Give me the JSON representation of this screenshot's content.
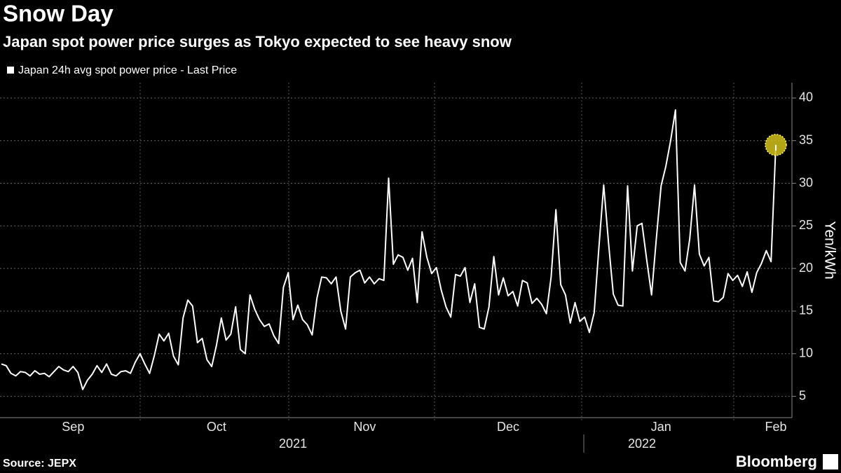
{
  "chart_data": {
    "type": "line",
    "title": "Snow Day",
    "subtitle": "Japan spot power price surges as Tokyo expected to see heavy snow",
    "y_label": "Yen/kWh",
    "source": "Source: JEPX",
    "brand": "Bloomberg",
    "series": [
      {
        "name": "Japan 24h avg spot power price - Last Price",
        "color": "#ffffff",
        "values": [
          8.8,
          8.6,
          7.7,
          7.4,
          7.9,
          7.8,
          7.4,
          8.0,
          7.6,
          7.7,
          7.3,
          7.9,
          8.5,
          8.1,
          7.9,
          8.5,
          7.8,
          5.8,
          6.9,
          7.6,
          8.6,
          7.8,
          8.8,
          7.6,
          7.4,
          7.9,
          8.0,
          7.7,
          9.0,
          10.0,
          8.8,
          7.7,
          9.8,
          12.3,
          11.5,
          12.4,
          9.7,
          8.7,
          14.2,
          16.3,
          15.6,
          11.3,
          11.8,
          9.3,
          8.5,
          11.0,
          14.2,
          11.6,
          12.3,
          15.5,
          10.5,
          10.0,
          16.9,
          15.2,
          14.0,
          13.2,
          13.5,
          12.1,
          11.2,
          17.8,
          19.5,
          14.0,
          15.7,
          14.0,
          13.4,
          12.2,
          16.5,
          19.0,
          18.9,
          18.2,
          19.0,
          15.0,
          12.9,
          19.0,
          19.5,
          19.8,
          18.3,
          19.0,
          18.2,
          18.8,
          18.6,
          30.6,
          20.5,
          21.6,
          21.3,
          19.8,
          21.2,
          16.0,
          24.3,
          21.3,
          19.4,
          20.1,
          17.5,
          15.5,
          14.3,
          19.3,
          19.1,
          20.1,
          16.0,
          18.2,
          13.1,
          12.9,
          15.5,
          21.4,
          16.9,
          18.9,
          16.8,
          17.3,
          15.6,
          18.6,
          18.3,
          15.9,
          16.5,
          15.8,
          14.7,
          19.0,
          26.9,
          18.1,
          16.9,
          13.6,
          16.0,
          13.8,
          14.3,
          12.5,
          14.8,
          22.5,
          29.8,
          23.0,
          17.0,
          15.7,
          15.6,
          29.7,
          19.7,
          25.0,
          25.3,
          21.0,
          16.9,
          23.5,
          29.7,
          32.0,
          35.0,
          38.6,
          20.7,
          19.7,
          23.5,
          29.8,
          21.7,
          20.3,
          21.3,
          16.2,
          16.1,
          16.6,
          19.4,
          18.6,
          19.2,
          17.9,
          19.6,
          17.2,
          19.5,
          20.6,
          22.1,
          20.8,
          34.5
        ]
      }
    ],
    "categories": [
      null,
      null,
      null,
      null,
      null,
      null,
      null,
      null,
      null,
      null,
      null,
      null,
      null,
      null,
      null,
      "Sep",
      null,
      null,
      null,
      null,
      null,
      null,
      null,
      null,
      null,
      null,
      null,
      null,
      null,
      null,
      null,
      null,
      null,
      null,
      null,
      null,
      null,
      null,
      null,
      null,
      null,
      null,
      null,
      null,
      null,
      "Oct",
      null,
      null,
      null,
      null,
      null,
      null,
      null,
      null,
      null,
      null,
      null,
      null,
      null,
      null,
      null,
      null,
      null,
      null,
      null,
      null,
      null,
      null,
      null,
      null,
      null,
      null,
      null,
      null,
      null,
      null,
      "Nov",
      null,
      null,
      null,
      null,
      null,
      null,
      null,
      null,
      null,
      null,
      null,
      null,
      null,
      null,
      null,
      null,
      null,
      null,
      null,
      null,
      null,
      null,
      null,
      null,
      null,
      null,
      null,
      null,
      null,
      "Dec",
      null,
      null,
      null,
      null,
      null,
      null,
      null,
      null,
      null,
      null,
      null,
      null,
      null,
      null,
      null,
      null,
      null,
      null,
      null,
      null,
      null,
      null,
      null,
      null,
      null,
      null,
      null,
      null,
      null,
      null,
      null,
      "Jan",
      null,
      null,
      null,
      null,
      null,
      null,
      null,
      null,
      null,
      null,
      null,
      null,
      null,
      null,
      null,
      null,
      null,
      null,
      null,
      null,
      null,
      null,
      null,
      "Feb"
    ],
    "year_categories": [
      null,
      null,
      null,
      null,
      null,
      null,
      null,
      null,
      null,
      null,
      null,
      null,
      null,
      null,
      null,
      null,
      null,
      null,
      null,
      null,
      null,
      null,
      null,
      null,
      null,
      null,
      null,
      null,
      null,
      null,
      null,
      null,
      null,
      null,
      null,
      null,
      null,
      null,
      null,
      null,
      null,
      null,
      null,
      null,
      null,
      null,
      null,
      null,
      null,
      null,
      null,
      null,
      null,
      null,
      null,
      null,
      null,
      null,
      null,
      null,
      null,
      "2021",
      null,
      null,
      null,
      null,
      null,
      null,
      null,
      null,
      null,
      null,
      null,
      null,
      null,
      null,
      null,
      null,
      null,
      null,
      null,
      null,
      null,
      null,
      null,
      null,
      null,
      null,
      null,
      null,
      null,
      null,
      null,
      null,
      null,
      null,
      null,
      null,
      null,
      null,
      null,
      null,
      null,
      null,
      null,
      null,
      null,
      null,
      null,
      null,
      null,
      null,
      null,
      null,
      null,
      null,
      null,
      null,
      null,
      null,
      null,
      null,
      null,
      null,
      null,
      null,
      null,
      null,
      null,
      null,
      null,
      null,
      null,
      null,
      "2022",
      null,
      null,
      null,
      null,
      null,
      null,
      null,
      null,
      null,
      null,
      null,
      null,
      null,
      null,
      null,
      null,
      null,
      null
    ],
    "ylim": [
      2.5,
      41.8
    ],
    "yticks": [
      5,
      10,
      15,
      20,
      25,
      30,
      35,
      40
    ],
    "grid": true,
    "y_axis_side": "right",
    "highlight_last": true,
    "highlight_color": "#d4c21a"
  }
}
